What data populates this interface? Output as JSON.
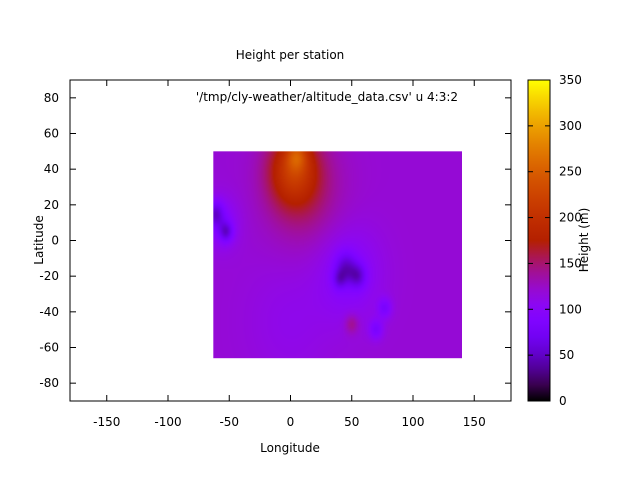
{
  "chart_data": {
    "type": "heatmap",
    "title": "Height per station",
    "xlabel": "Longitude",
    "ylabel": "Latitude",
    "colorbar_label": "Height (m)",
    "legend_entry": "'/tmp/cly-weather/altitude_data.csv' u 4:3:2",
    "xlim": [
      -180,
      180
    ],
    "ylim": [
      -90,
      90
    ],
    "zlim": [
      0,
      350
    ],
    "xticks": [
      -150,
      -100,
      -50,
      0,
      50,
      100,
      150
    ],
    "yticks": [
      -80,
      -60,
      -40,
      -20,
      0,
      20,
      40,
      60,
      80
    ],
    "zticks": [
      0,
      50,
      100,
      150,
      200,
      250,
      300,
      350
    ],
    "data_extent": {
      "x": [
        -63,
        140
      ],
      "y": [
        -66,
        50
      ]
    },
    "base_value": 120,
    "features": [
      {
        "x": 2,
        "y": 40,
        "z": 195,
        "spread": 14
      },
      {
        "x": 10,
        "y": 28,
        "z": 150,
        "spread": 22
      },
      {
        "x": 5,
        "y": 48,
        "z": 175,
        "spread": 6
      },
      {
        "x": -62,
        "y": 15,
        "z": 70,
        "spread": 5
      },
      {
        "x": -53,
        "y": 5,
        "z": 70,
        "spread": 4
      },
      {
        "x": -57,
        "y": 10,
        "z": 95,
        "spread": 10
      },
      {
        "x": 45,
        "y": -15,
        "z": 75,
        "spread": 6
      },
      {
        "x": 55,
        "y": -20,
        "z": 75,
        "spread": 5
      },
      {
        "x": 40,
        "y": -22,
        "z": 85,
        "spread": 4
      },
      {
        "x": 48,
        "y": -18,
        "z": 95,
        "spread": 18
      },
      {
        "x": 77,
        "y": -38,
        "z": 85,
        "spread": 4
      },
      {
        "x": 70,
        "y": -50,
        "z": 85,
        "spread": 4
      },
      {
        "x": 50,
        "y": -47,
        "z": 148,
        "spread": 4
      },
      {
        "x": 0,
        "y": -45,
        "z": 110,
        "spread": 25
      }
    ]
  }
}
